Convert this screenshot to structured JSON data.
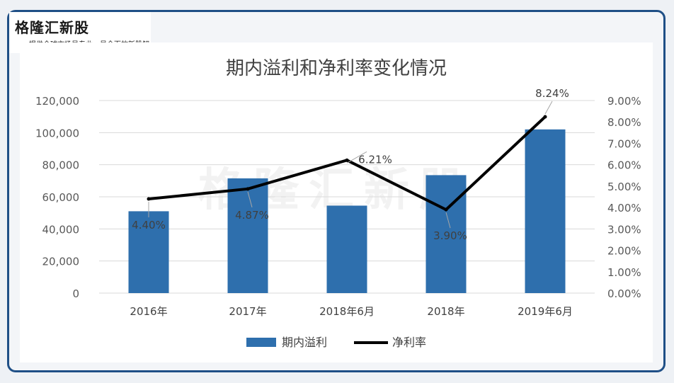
{
  "brand": {
    "name": "格隆汇新股",
    "slogan": "提供全球市场最专业、最全面的新股解读"
  },
  "chart_data": {
    "type": "bar",
    "title": "期内溢利和净利率变化情况",
    "categories": [
      "2016年",
      "2017年",
      "2018年6月",
      "2018年",
      "2019年6月"
    ],
    "series": [
      {
        "name": "期内溢利",
        "type": "bar",
        "axis": "left",
        "color": "#2e6fad",
        "values": [
          51000,
          71500,
          54500,
          73500,
          102000
        ]
      },
      {
        "name": "净利率",
        "type": "line",
        "axis": "right",
        "color": "#000000",
        "values": [
          4.4,
          4.87,
          6.21,
          3.9,
          8.24
        ],
        "labels": [
          "4.40%",
          "4.87%",
          "6.21%",
          "3.90%",
          "8.24%"
        ]
      }
    ],
    "y_left": {
      "range": [
        0,
        120000
      ],
      "ticks": [
        "0",
        "20,000",
        "40,000",
        "60,000",
        "80,000",
        "100,000",
        "120,000"
      ]
    },
    "y_right": {
      "range": [
        0,
        9
      ],
      "ticks": [
        "0.00%",
        "1.00%",
        "2.00%",
        "3.00%",
        "4.00%",
        "5.00%",
        "6.00%",
        "7.00%",
        "8.00%",
        "9.00%"
      ]
    },
    "grid": true,
    "legend": "bottom-center",
    "watermark": "格隆汇新股"
  }
}
